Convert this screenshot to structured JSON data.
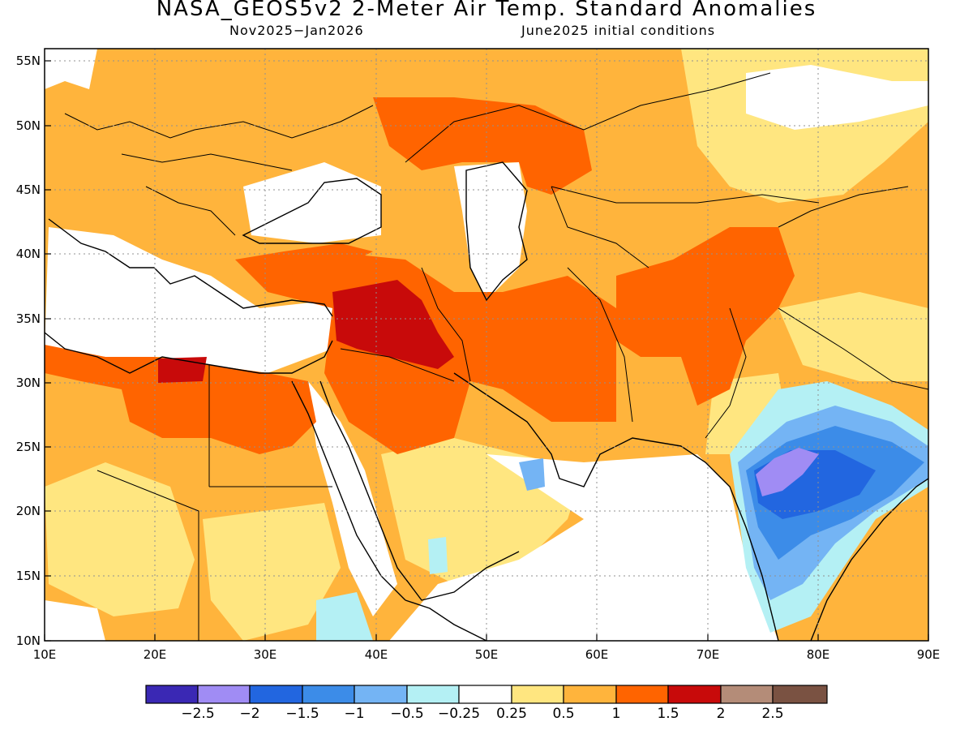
{
  "header": {
    "title": "NASA_GEOS5v2 2-Meter Air Temp. Standard Anomalies",
    "period": "Nov2025-Jan2026",
    "init": "June2025 initial conditions"
  },
  "axes": {
    "lon_ticks": [
      "10E",
      "20E",
      "30E",
      "40E",
      "50E",
      "60E",
      "70E",
      "80E",
      "90E"
    ],
    "lat_ticks": [
      "10N",
      "15N",
      "20N",
      "25N",
      "30N",
      "35N",
      "40N",
      "45N",
      "50N",
      "55N"
    ]
  },
  "colors": {
    "bins": [
      "#3a28b4",
      "#a08cf4",
      "#2266e0",
      "#3c8ce8",
      "#74b4f4",
      "#b4f0f4",
      "#ffffff",
      "#ffe680",
      "#ffb43c",
      "#ff6400",
      "#c80a0a",
      "#b48c78",
      "#7a5242"
    ],
    "land_line": "#000000"
  },
  "colorbar": {
    "labels": [
      "-2.5",
      "-2",
      "-1.5",
      "-1",
      "-0.5",
      "-0.25",
      "0.25",
      "0.5",
      "1",
      "1.5",
      "2",
      "2.5"
    ]
  }
}
